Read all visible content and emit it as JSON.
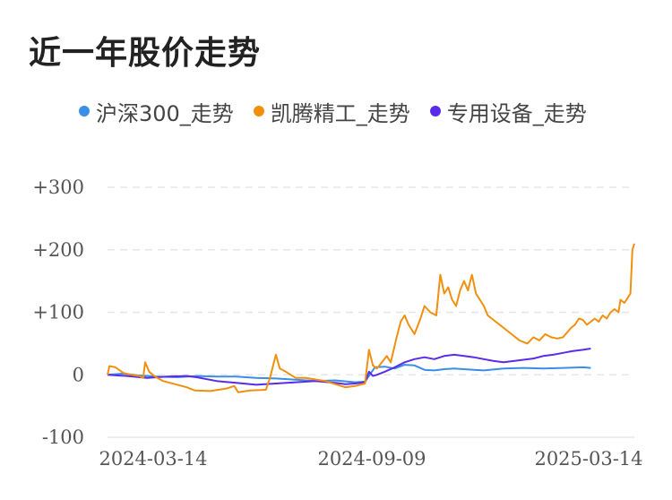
{
  "title": "近一年股价走势",
  "chart_data": {
    "type": "line",
    "title": "近一年股价走势",
    "xlabel": "",
    "ylabel": "",
    "ylim": [
      -100,
      300
    ],
    "yticks": [
      "+300",
      "+200",
      "+100",
      "0",
      "-100"
    ],
    "ytick_values": [
      300,
      200,
      100,
      0,
      -100
    ],
    "xticks": [
      "2024-03-14",
      "2024-09-09",
      "2025-03-14"
    ],
    "grid": true,
    "legend_position": "top",
    "series": [
      {
        "name": "沪深300_走势",
        "color": "#3a8ee6",
        "points": [
          [
            0,
            0
          ],
          [
            8,
            2
          ],
          [
            15,
            -1
          ],
          [
            25,
            -3
          ],
          [
            35,
            -4
          ],
          [
            45,
            -2
          ],
          [
            55,
            -3
          ],
          [
            65,
            -3
          ],
          [
            75,
            -5
          ],
          [
            85,
            -6
          ],
          [
            95,
            -8
          ],
          [
            105,
            -10
          ],
          [
            115,
            -9
          ],
          [
            125,
            -12
          ],
          [
            130,
            -11
          ],
          [
            135,
            12
          ],
          [
            140,
            13
          ],
          [
            145,
            10
          ],
          [
            150,
            16
          ],
          [
            155,
            15
          ],
          [
            160,
            8
          ],
          [
            165,
            7
          ],
          [
            170,
            9
          ],
          [
            175,
            10
          ],
          [
            185,
            8
          ],
          [
            190,
            7
          ],
          [
            200,
            10
          ],
          [
            210,
            11
          ],
          [
            220,
            10
          ],
          [
            230,
            11
          ],
          [
            240,
            12
          ],
          [
            244,
            11
          ]
        ]
      },
      {
        "name": "凯腾精工_走势",
        "color": "#f0900e",
        "points": [
          [
            0,
            0
          ],
          [
            1,
            14
          ],
          [
            4,
            12
          ],
          [
            8,
            3
          ],
          [
            12,
            0
          ],
          [
            16,
            -2
          ],
          [
            18,
            -5
          ],
          [
            19,
            20
          ],
          [
            21,
            5
          ],
          [
            24,
            -3
          ],
          [
            28,
            -10
          ],
          [
            34,
            -15
          ],
          [
            40,
            -20
          ],
          [
            44,
            -25
          ],
          [
            52,
            -26
          ],
          [
            60,
            -22
          ],
          [
            64,
            -18
          ],
          [
            66,
            -28
          ],
          [
            72,
            -25
          ],
          [
            80,
            -24
          ],
          [
            82,
            -5
          ],
          [
            85,
            32
          ],
          [
            87,
            10
          ],
          [
            90,
            5
          ],
          [
            95,
            -5
          ],
          [
            100,
            -5
          ],
          [
            110,
            -10
          ],
          [
            120,
            -20
          ],
          [
            125,
            -18
          ],
          [
            130,
            -14
          ],
          [
            132,
            40
          ],
          [
            134,
            15
          ],
          [
            136,
            10
          ],
          [
            138,
            18
          ],
          [
            141,
            30
          ],
          [
            143,
            20
          ],
          [
            146,
            60
          ],
          [
            148,
            85
          ],
          [
            150,
            95
          ],
          [
            152,
            80
          ],
          [
            155,
            65
          ],
          [
            158,
            90
          ],
          [
            160,
            110
          ],
          [
            163,
            100
          ],
          [
            166,
            95
          ],
          [
            168,
            160
          ],
          [
            170,
            130
          ],
          [
            172,
            140
          ],
          [
            174,
            120
          ],
          [
            176,
            110
          ],
          [
            178,
            135
          ],
          [
            180,
            150
          ],
          [
            182,
            135
          ],
          [
            184,
            160
          ],
          [
            186,
            130
          ],
          [
            188,
            120
          ],
          [
            190,
            110
          ],
          [
            192,
            95
          ],
          [
            194,
            90
          ],
          [
            196,
            85
          ],
          [
            198,
            80
          ],
          [
            200,
            75
          ],
          [
            202,
            70
          ],
          [
            204,
            65
          ],
          [
            206,
            60
          ],
          [
            208,
            55
          ],
          [
            212,
            50
          ],
          [
            215,
            60
          ],
          [
            218,
            55
          ],
          [
            221,
            65
          ],
          [
            224,
            60
          ],
          [
            227,
            58
          ],
          [
            230,
            60
          ],
          [
            234,
            75
          ],
          [
            236,
            80
          ],
          [
            238,
            90
          ],
          [
            240,
            88
          ],
          [
            242,
            80
          ],
          [
            244,
            85
          ],
          [
            246,
            90
          ],
          [
            248,
            85
          ],
          [
            250,
            95
          ],
          [
            252,
            90
          ],
          [
            254,
            100
          ],
          [
            256,
            105
          ],
          [
            258,
            100
          ],
          [
            259,
            120
          ],
          [
            261,
            115
          ],
          [
            263,
            125
          ],
          [
            264,
            130
          ],
          [
            265,
            200
          ],
          [
            266,
            210
          ]
        ]
      },
      {
        "name": "专用设备_走势",
        "color": "#5a2be8",
        "points": [
          [
            0,
            0
          ],
          [
            10,
            -2
          ],
          [
            20,
            -5
          ],
          [
            30,
            -3
          ],
          [
            40,
            -2
          ],
          [
            45,
            -4
          ],
          [
            55,
            -10
          ],
          [
            65,
            -13
          ],
          [
            75,
            -16
          ],
          [
            85,
            -14
          ],
          [
            95,
            -12
          ],
          [
            105,
            -10
          ],
          [
            115,
            -13
          ],
          [
            120,
            -15
          ],
          [
            125,
            -14
          ],
          [
            130,
            -12
          ],
          [
            132,
            5
          ],
          [
            134,
            -2
          ],
          [
            136,
            0
          ],
          [
            140,
            5
          ],
          [
            145,
            12
          ],
          [
            150,
            20
          ],
          [
            155,
            25
          ],
          [
            160,
            28
          ],
          [
            165,
            25
          ],
          [
            170,
            30
          ],
          [
            175,
            32
          ],
          [
            180,
            30
          ],
          [
            185,
            28
          ],
          [
            190,
            25
          ],
          [
            195,
            22
          ],
          [
            200,
            20
          ],
          [
            205,
            22
          ],
          [
            210,
            24
          ],
          [
            215,
            26
          ],
          [
            220,
            30
          ],
          [
            225,
            32
          ],
          [
            230,
            35
          ],
          [
            235,
            38
          ],
          [
            240,
            40
          ],
          [
            244,
            42
          ]
        ]
      }
    ]
  }
}
